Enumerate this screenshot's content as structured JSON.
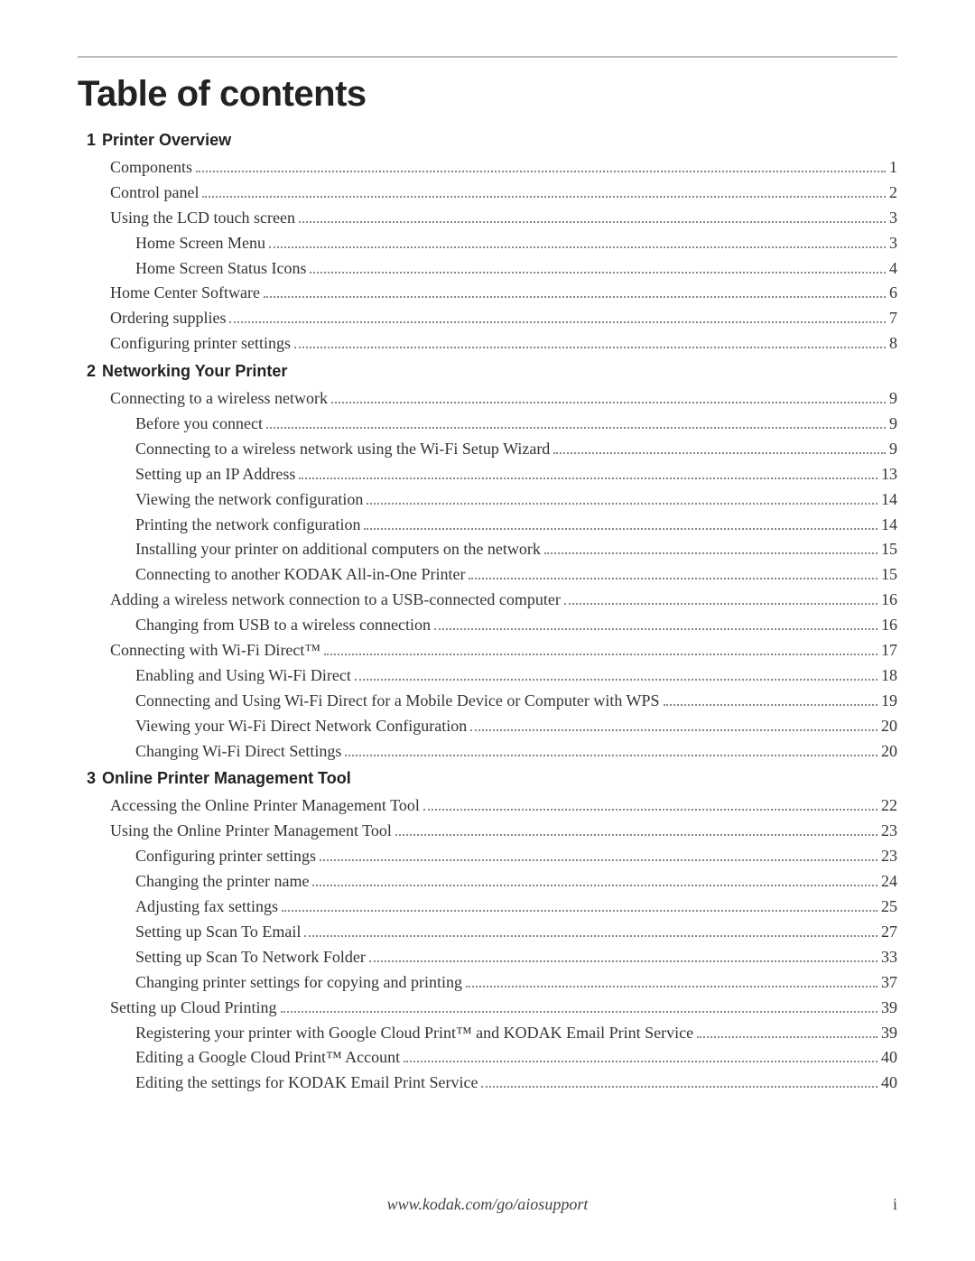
{
  "title": "Table of contents",
  "footer": {
    "url": "www.kodak.com/go/aiosupport",
    "page_number": "i"
  },
  "colors": {
    "rule": "#bcbcbc",
    "text": "#333333",
    "heading": "#222222",
    "dots": "#888888"
  },
  "sections": [
    {
      "num": "1",
      "title": "Printer Overview",
      "entries": [
        {
          "level": 1,
          "label": "Components",
          "page": "1"
        },
        {
          "level": 1,
          "label": "Control panel",
          "page": "2"
        },
        {
          "level": 1,
          "label": "Using the LCD touch screen",
          "page": "3"
        },
        {
          "level": 2,
          "label": "Home Screen Menu",
          "page": "3"
        },
        {
          "level": 2,
          "label": "Home Screen Status Icons",
          "page": "4"
        },
        {
          "level": 1,
          "label": "Home Center Software",
          "page": "6"
        },
        {
          "level": 1,
          "label": "Ordering supplies",
          "page": "7"
        },
        {
          "level": 1,
          "label": "Configuring printer settings",
          "page": "8"
        }
      ]
    },
    {
      "num": "2",
      "title": "Networking Your Printer",
      "entries": [
        {
          "level": 1,
          "label": "Connecting to a wireless network",
          "page": "9"
        },
        {
          "level": 2,
          "label": "Before you connect",
          "page": "9"
        },
        {
          "level": 2,
          "label": "Connecting to a wireless network using the Wi-Fi Setup Wizard",
          "page": "9"
        },
        {
          "level": 2,
          "label": "Setting up an IP Address",
          "page": "13"
        },
        {
          "level": 2,
          "label": "Viewing the network configuration",
          "page": "14"
        },
        {
          "level": 2,
          "label": "Printing the network configuration",
          "page": "14"
        },
        {
          "level": 2,
          "label": "Installing your printer on additional computers on the network",
          "page": "15"
        },
        {
          "level": 2,
          "label": "Connecting to another KODAK All-in-One Printer",
          "page": "15"
        },
        {
          "level": 1,
          "label": "Adding a wireless network connection to a USB-connected computer",
          "page": "16"
        },
        {
          "level": 2,
          "label": "Changing from USB to a wireless connection",
          "page": "16"
        },
        {
          "level": 1,
          "label": "Connecting with Wi-Fi Direct™",
          "page": "17"
        },
        {
          "level": 2,
          "label": "Enabling and Using Wi-Fi Direct",
          "page": "18"
        },
        {
          "level": 2,
          "label": "Connecting and Using Wi-Fi Direct for a Mobile Device or Computer with WPS",
          "page": "19"
        },
        {
          "level": 2,
          "label": "Viewing your Wi-Fi Direct Network Configuration",
          "page": "20"
        },
        {
          "level": 2,
          "label": "Changing Wi-Fi Direct Settings",
          "page": "20"
        }
      ]
    },
    {
      "num": "3",
      "title": "Online Printer Management Tool",
      "entries": [
        {
          "level": 1,
          "label": "Accessing the Online Printer Management Tool",
          "page": "22"
        },
        {
          "level": 1,
          "label": "Using the Online Printer Management Tool",
          "page": "23"
        },
        {
          "level": 2,
          "label": "Configuring printer settings",
          "page": "23"
        },
        {
          "level": 2,
          "label": "Changing the printer name",
          "page": "24"
        },
        {
          "level": 2,
          "label": "Adjusting fax settings",
          "page": "25"
        },
        {
          "level": 2,
          "label": "Setting up Scan To Email",
          "page": "27"
        },
        {
          "level": 2,
          "label": "Setting up Scan To Network Folder",
          "page": "33"
        },
        {
          "level": 2,
          "label": "Changing printer settings for copying and printing",
          "page": "37"
        },
        {
          "level": 1,
          "label": "Setting up Cloud Printing",
          "page": "39"
        },
        {
          "level": 2,
          "label": "Registering your printer with Google Cloud Print™ and KODAK Email Print Service",
          "page": "39"
        },
        {
          "level": 2,
          "label": "Editing a Google Cloud Print™ Account",
          "page": "40"
        },
        {
          "level": 2,
          "label": "Editing the settings for KODAK Email Print Service",
          "page": "40"
        }
      ]
    }
  ]
}
